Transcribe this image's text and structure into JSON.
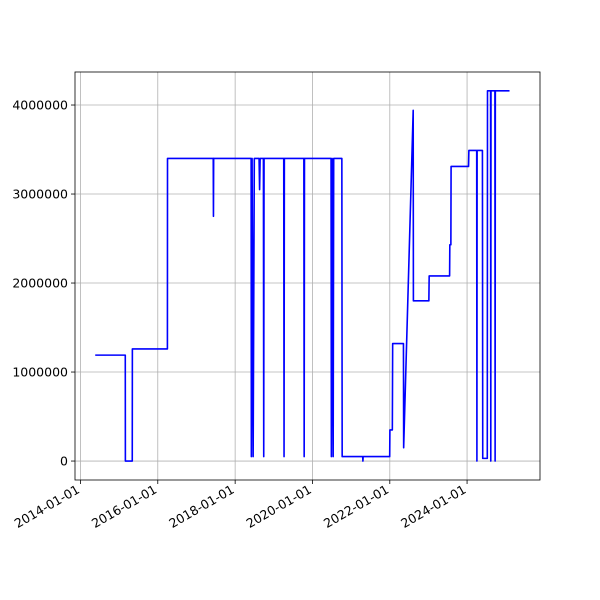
{
  "chart_data": {
    "type": "line",
    "x": [
      "2014-05-20",
      "2015-02-28",
      "2015-03-01",
      "2015-05-05",
      "2015-05-06",
      "2016-04-01",
      "2016-04-02",
      "2017-06-08",
      "2017-06-10",
      "2017-06-12",
      "2018-06-01",
      "2018-06-03",
      "2018-06-10",
      "2018-06-20",
      "2018-07-01",
      "2018-08-15",
      "2018-08-20",
      "2018-08-25",
      "2018-09-25",
      "2018-09-28",
      "2018-10-01",
      "2019-04-05",
      "2019-04-08",
      "2019-04-11",
      "2019-10-12",
      "2019-10-15",
      "2019-10-18",
      "2020-06-25",
      "2020-06-28",
      "2020-07-05",
      "2020-07-15",
      "2020-07-20",
      "2020-10-05",
      "2020-10-08",
      "2021-04-20",
      "2021-04-22",
      "2021-04-24",
      "2021-12-31",
      "2022-01-02",
      "2022-01-25",
      "2022-01-28",
      "2022-05-10",
      "2022-05-12",
      "2022-08-10",
      "2022-08-12",
      "2023-01-05",
      "2023-01-08",
      "2023-07-20",
      "2023-07-22",
      "2023-08-01",
      "2023-08-03",
      "2024-01-15",
      "2024-01-18",
      "2024-04-01",
      "2024-04-03",
      "2024-04-05",
      "2024-05-25",
      "2024-05-28",
      "2024-07-10",
      "2024-07-12",
      "2024-08-10",
      "2024-08-12",
      "2024-08-14",
      "2024-09-20",
      "2024-09-22",
      "2024-09-24",
      "2025-02-05"
    ],
    "series": [
      {
        "color": "#0000ff",
        "values": [
          1190000,
          1190000,
          0,
          0,
          1260000,
          1260000,
          3400000,
          3400000,
          2750000,
          3400000,
          3400000,
          50000,
          3400000,
          50000,
          3400000,
          3400000,
          3050000,
          3400000,
          3400000,
          50000,
          3400000,
          3400000,
          50000,
          3400000,
          3400000,
          50000,
          3400000,
          3400000,
          50000,
          3400000,
          50000,
          3400000,
          3400000,
          50000,
          50000,
          0,
          50000,
          50000,
          350000,
          350000,
          1320000,
          1320000,
          150000,
          3940000,
          1800000,
          1800000,
          2080000,
          2080000,
          2430000,
          2430000,
          3310000,
          3310000,
          3490000,
          3490000,
          0,
          3490000,
          3490000,
          30000,
          30000,
          4160000,
          4160000,
          0,
          4160000,
          4160000,
          0,
          4160000,
          4160000
        ]
      }
    ],
    "xlim": [
      "2013-11-10",
      "2025-11-20"
    ],
    "xticks": [
      "2014-01-01",
      "2016-01-01",
      "2018-01-01",
      "2020-01-01",
      "2022-01-01",
      "2024-01-01"
    ],
    "ylim": [
      -213000,
      4371000
    ],
    "yticks": [
      0,
      1000000,
      2000000,
      3000000,
      4000000
    ],
    "grid": true
  }
}
